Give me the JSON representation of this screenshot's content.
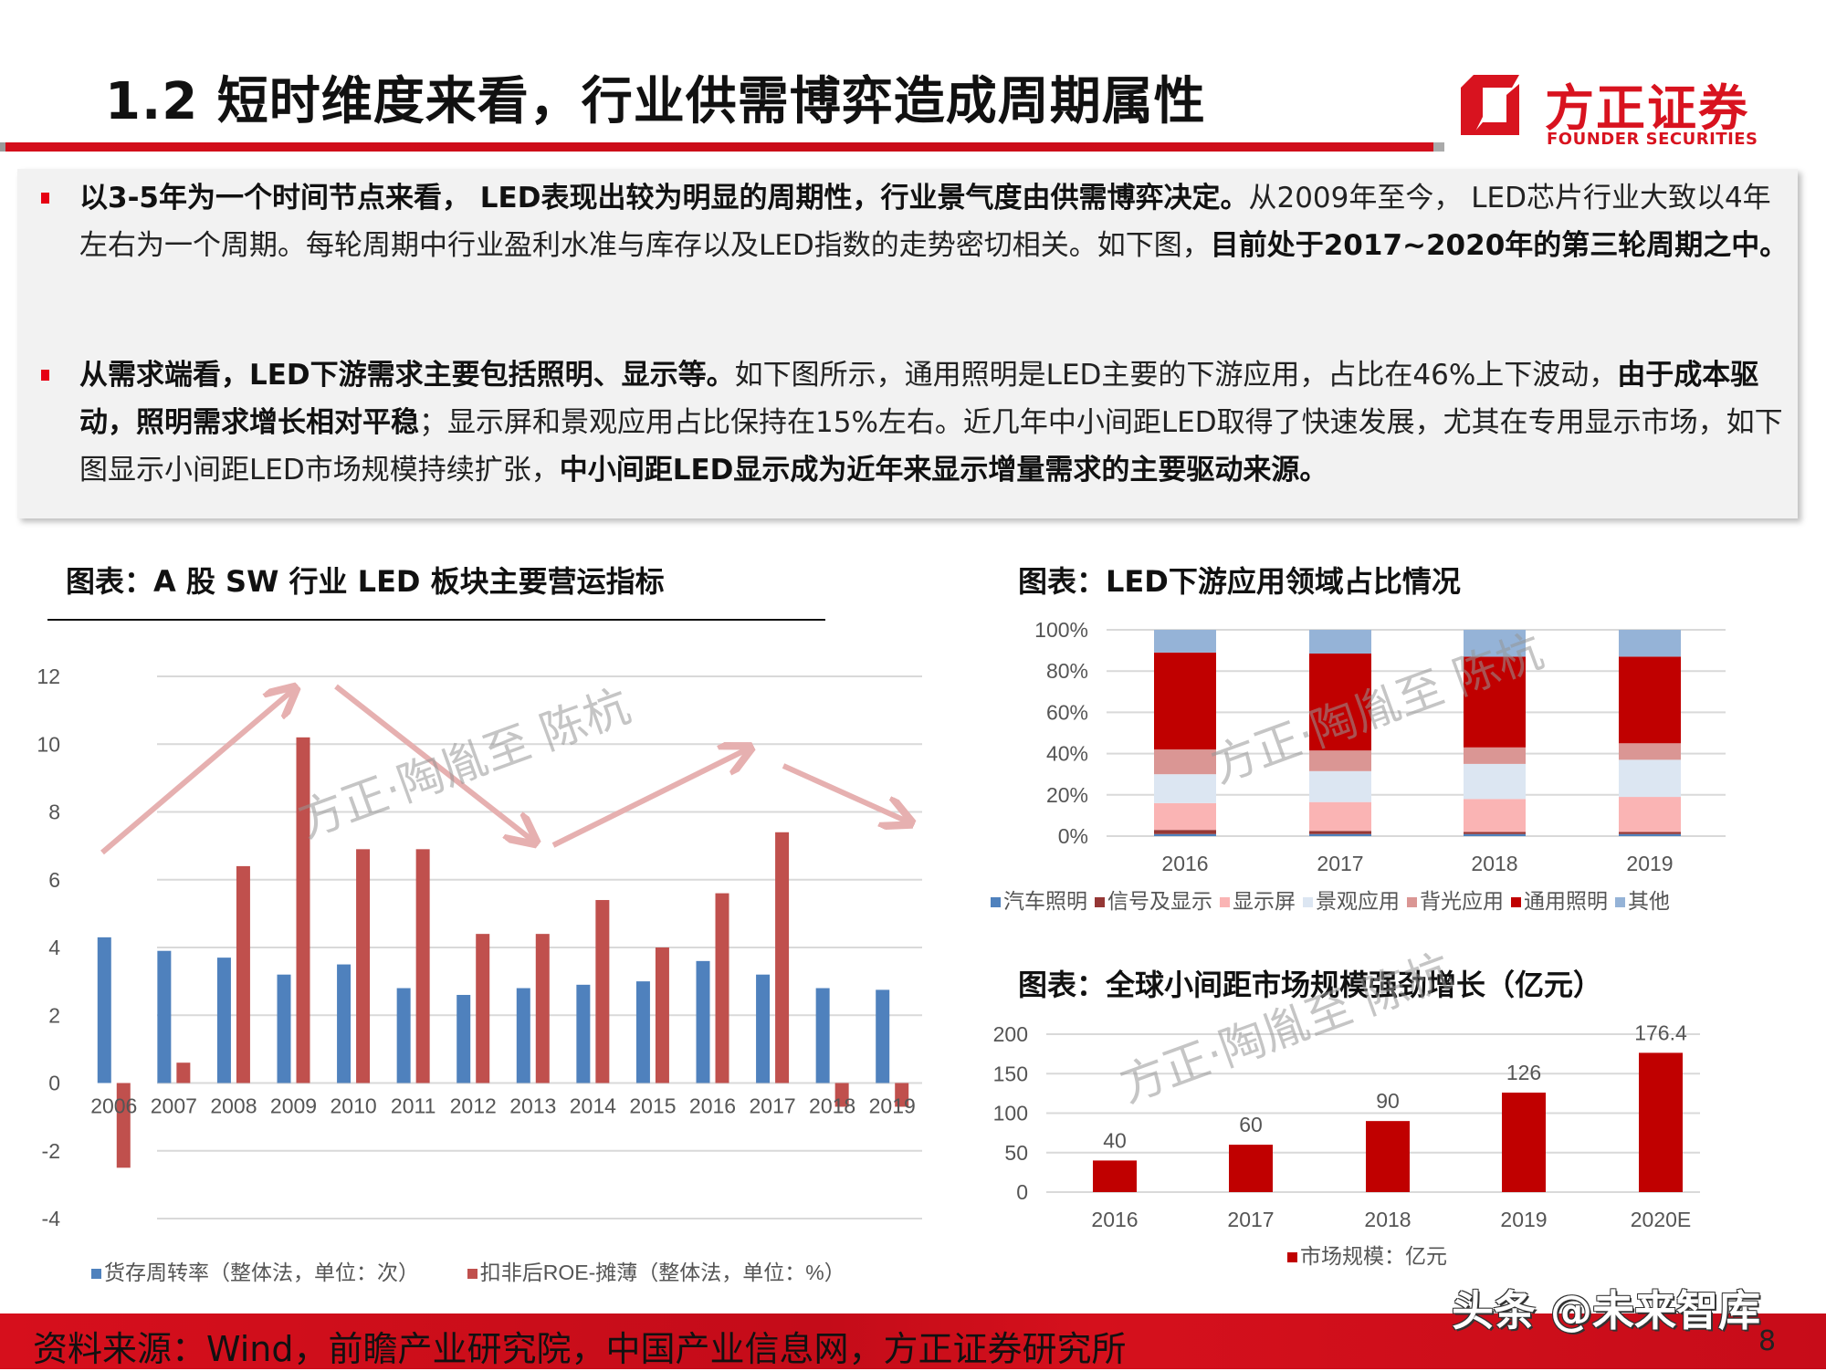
{
  "page": {
    "title": "1.2 短时维度来看，行业供需博弈造成周期属性",
    "page_number": "8",
    "source": "资料来源：Wind，前瞻产业研究院，中国产业信息网，方正证券研究所",
    "watermark_platform": "头条 @未来智库",
    "chart_watermark": "方正·陶胤至 陈杭"
  },
  "logo": {
    "name_cn": "方正证券",
    "name_en": "FOUNDER SECURITIES",
    "color": "#d8131f"
  },
  "bullets": [
    {
      "segments": [
        {
          "text": "以3-5年为一个时间节点来看， LED表现出较为明显的周期性，行业景气度由供需博弈决定。",
          "bold": true
        },
        {
          "text": "从2009年至今， LED芯片行业大致以4年左右为一个周期。每轮周期中行业盈利水准与库存以及LED指数的走势密切相关。如下图，",
          "bold": false
        },
        {
          "text": "目前处于2017~2020年的第三轮周期之中。",
          "bold": true
        }
      ]
    },
    {
      "segments": [
        {
          "text": "从需求端看，LED下游需求主要包括照明、显示等。",
          "bold": true
        },
        {
          "text": "如下图所示，通用照明是LED主要的下游应用，占比在46%上下波动，",
          "bold": false
        },
        {
          "text": "由于成本驱动，照明需求增长相对平稳",
          "bold": true
        },
        {
          "text": "；显示屏和景观应用占比保持在15%左右。近几年中小间距LED取得了快速发展，尤其在专用显示市场，如下图显示小间距LED市场规模持续扩张，",
          "bold": false
        },
        {
          "text": "中小间距LED显示成为近年来显示增量需求的主要驱动来源。",
          "bold": true
        }
      ]
    }
  ],
  "chart_data": [
    {
      "type": "bar",
      "title": "图表：A 股 SW 行业 LED 板块主要营运指标",
      "xlabel": "",
      "ylabel": "",
      "ylim": [
        -4,
        12
      ],
      "yticks": [
        12,
        10,
        8,
        6,
        4,
        2,
        0,
        -2,
        -4
      ],
      "grid": true,
      "legend_position": "bottom",
      "categories": [
        "2006",
        "2007",
        "2008",
        "2009",
        "2010",
        "2011",
        "2012",
        "2013",
        "2014",
        "2015",
        "2016",
        "2017",
        "2018",
        "2019"
      ],
      "series": [
        {
          "name": "货存周转率（整体法，单位：次）",
          "color": "#4f81bd",
          "values": [
            4.3,
            3.9,
            3.7,
            3.2,
            3.5,
            2.8,
            2.6,
            2.8,
            2.9,
            3.0,
            3.6,
            3.2,
            2.8,
            2.75
          ]
        },
        {
          "name": "扣非后ROE-摊薄（整体法，单位：%）",
          "color": "#c0504d",
          "values": [
            -2.5,
            0.6,
            6.4,
            10.2,
            6.9,
            6.9,
            4.4,
            4.4,
            5.4,
            4.0,
            5.6,
            7.4,
            -0.7,
            -0.7
          ]
        }
      ],
      "annotations": [
        {
          "type": "arrow",
          "direction": "up",
          "from": "2006",
          "to": "2009",
          "label": "cycle rise"
        },
        {
          "type": "arrow",
          "direction": "down",
          "from": "2009",
          "to": "2013",
          "label": "cycle fall"
        },
        {
          "type": "arrow",
          "direction": "up",
          "from": "2013",
          "to": "2017",
          "label": "cycle rise"
        },
        {
          "type": "arrow",
          "direction": "down",
          "from": "2017",
          "to": "2019",
          "label": "cycle fall"
        }
      ]
    },
    {
      "type": "bar",
      "stacked": true,
      "percent": true,
      "title": "图表：LED下游应用领域占比情况",
      "ylim": [
        0,
        100
      ],
      "yticks": [
        "100%",
        "80%",
        "60%",
        "40%",
        "20%",
        "0%"
      ],
      "grid": true,
      "legend_position": "bottom",
      "categories": [
        "2016",
        "2017",
        "2018",
        "2019"
      ],
      "series": [
        {
          "name": "汽车照明",
          "color": "#4f81bd",
          "values": [
            1,
            1,
            1,
            1
          ]
        },
        {
          "name": "信号及显示",
          "color": "#953735",
          "values": [
            2,
            1.5,
            1,
            1
          ]
        },
        {
          "name": "显示屏",
          "color": "#fab4b4",
          "values": [
            13,
            14,
            16,
            17
          ]
        },
        {
          "name": "景观应用",
          "color": "#dce6f2",
          "values": [
            14,
            15,
            17,
            18
          ]
        },
        {
          "name": "背光应用",
          "color": "#da9694",
          "values": [
            12,
            10,
            8,
            8
          ]
        },
        {
          "name": "通用照明",
          "color": "#c00000",
          "values": [
            47,
            47,
            44,
            42
          ]
        },
        {
          "name": "其他",
          "color": "#95b3d7",
          "values": [
            11,
            11.5,
            13,
            13
          ]
        }
      ]
    },
    {
      "type": "bar",
      "title": "图表：全球小间距市场规模强劲增长（亿元）",
      "ylim": [
        0,
        200
      ],
      "yticks": [
        200,
        150,
        100,
        50,
        0
      ],
      "grid": true,
      "legend_position": "bottom",
      "categories": [
        "2016",
        "2017",
        "2018",
        "2019",
        "2020E"
      ],
      "series": [
        {
          "name": "市场规模：亿元",
          "color": "#c00000",
          "values": [
            40,
            60,
            90,
            126,
            176.4
          ]
        }
      ],
      "data_labels": [
        "40",
        "60",
        "90",
        "126",
        "176.4"
      ]
    }
  ]
}
